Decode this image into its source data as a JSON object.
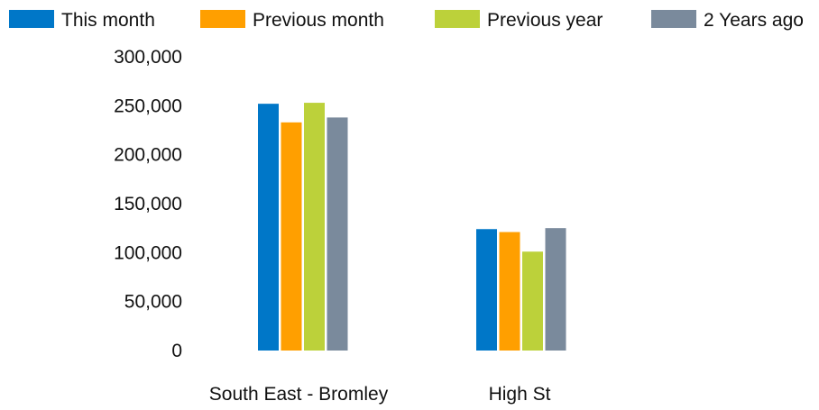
{
  "chart_data": {
    "type": "bar",
    "title": "",
    "xlabel": "",
    "ylabel": "",
    "categories": [
      "South East - Bromley",
      "High St"
    ],
    "series": [
      {
        "name": "This month",
        "color": "#0077c8",
        "values": [
          252000,
          124000
        ]
      },
      {
        "name": "Previous month",
        "color": "#ff9f00",
        "values": [
          233000,
          121000
        ]
      },
      {
        "name": "Previous year",
        "color": "#bcd13a",
        "values": [
          253000,
          101000
        ]
      },
      {
        "name": "2 Years ago",
        "color": "#7a8a9c",
        "values": [
          238000,
          125000
        ]
      }
    ],
    "ylim": [
      0,
      300000
    ],
    "yticks": [
      "0",
      "50,000",
      "100,000",
      "150,000",
      "200,000",
      "250,000",
      "300,000"
    ],
    "ytick_values": [
      0,
      50000,
      100000,
      150000,
      200000,
      250000,
      300000
    ],
    "grid": false,
    "legend_position": "top"
  }
}
